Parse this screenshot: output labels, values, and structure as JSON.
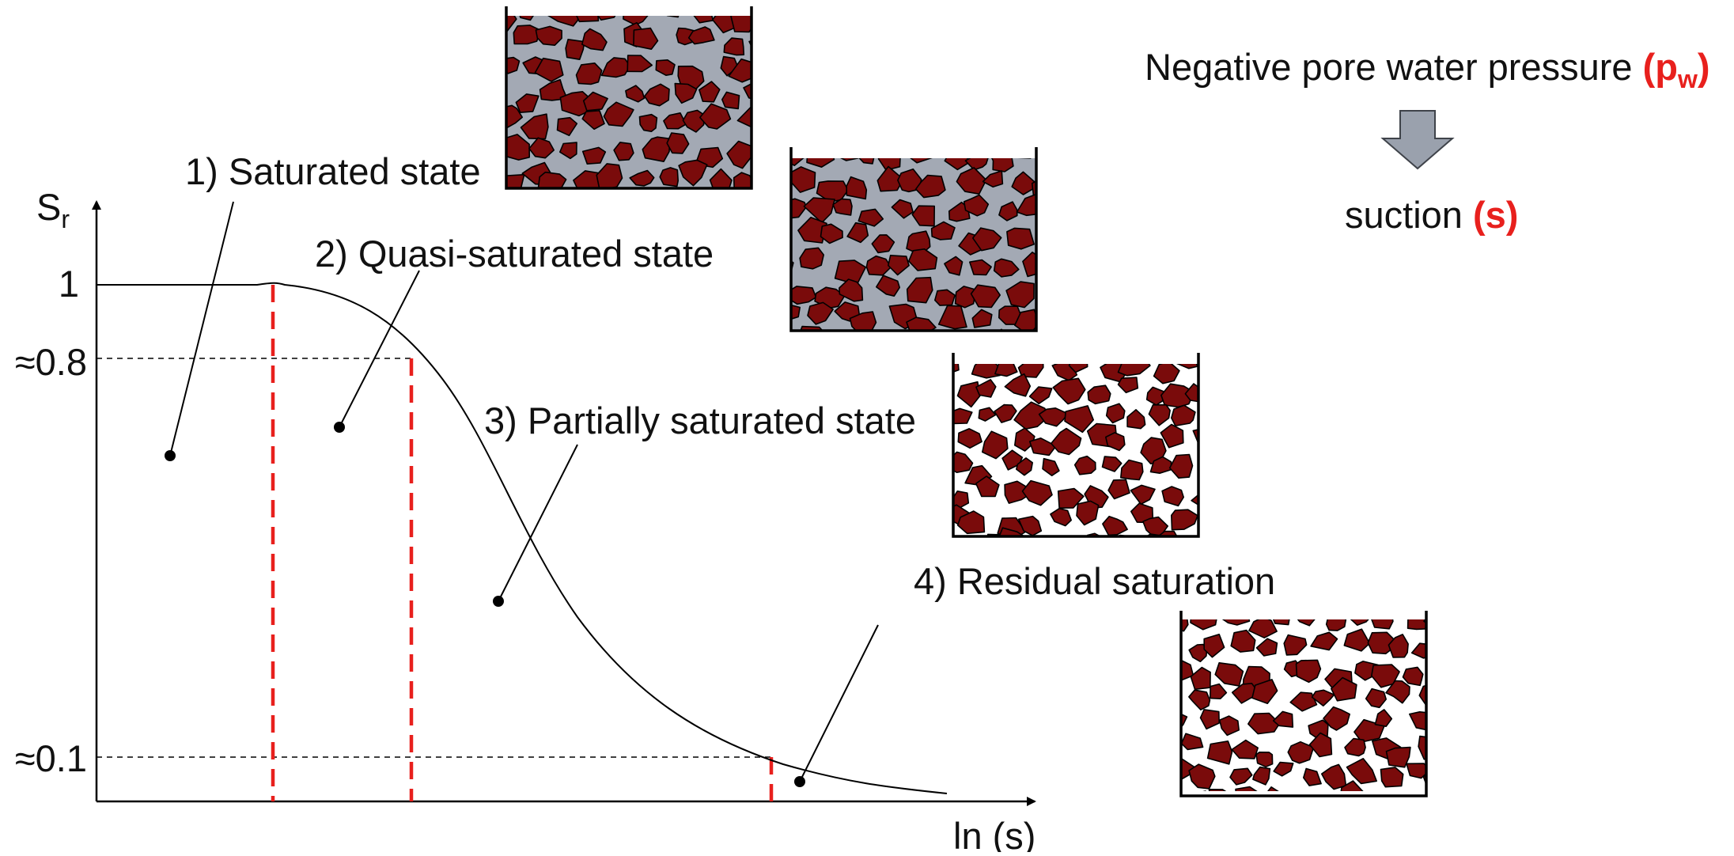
{
  "header": {
    "pressure_text": "Negative pore water pressure ",
    "pressure_open": "(p",
    "pressure_sub": "w",
    "pressure_close": ")",
    "suction_text": "suction ",
    "suction_symbol": "(s)"
  },
  "axes": {
    "y_label": "S",
    "y_label_sub": "r",
    "x_label": "ln (s)",
    "y_ticks": [
      "1",
      "≈0.8",
      "≈0.1"
    ]
  },
  "states": [
    {
      "label": "1) Saturated state"
    },
    {
      "label": "2) Quasi-saturated state"
    },
    {
      "label": "3) Partially saturated state"
    },
    {
      "label": "4) Residual saturation"
    }
  ],
  "colors": {
    "grain": "#7a0b0b",
    "pore_water": "#a3a9b4",
    "boundary_line": "#e8201d",
    "arrow": "#9aa1ad",
    "highlight_text": "#e8201d"
  }
}
